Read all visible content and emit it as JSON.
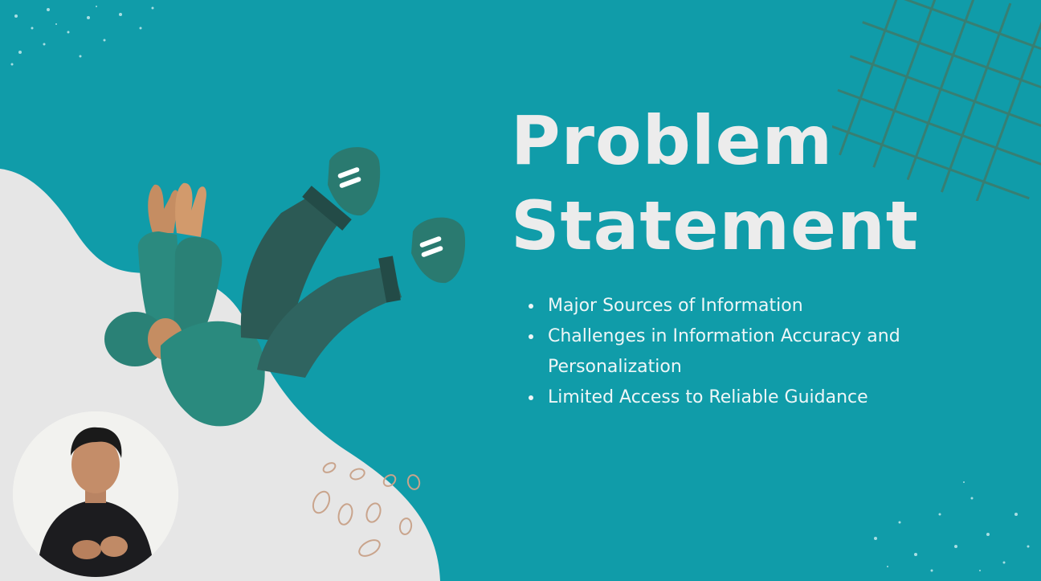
{
  "slide": {
    "title_line1": "Problem",
    "title_line2": "Statement",
    "bullets": [
      "Major Sources of Information",
      "Challenges in Information Accuracy and Personalization",
      "Limited Access to Reliable Guidance"
    ]
  },
  "colors": {
    "background": "#109ca9",
    "blob": "#e6e6e6",
    "title": "#ececec",
    "figure_clothing": "#2a6f69"
  },
  "icons": {
    "figure": "falling-person-illustration",
    "webcam": "presenter-webcam"
  }
}
